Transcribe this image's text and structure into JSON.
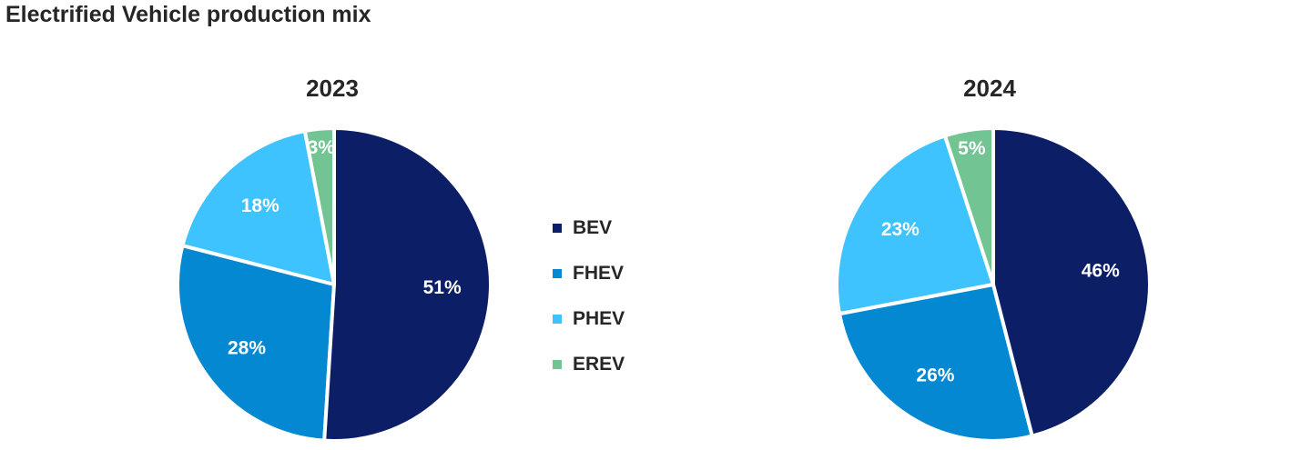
{
  "page": {
    "title": "Electrified Vehicle production mix"
  },
  "colors": {
    "BEV": "#0c1f66",
    "FHEV": "#0388d1",
    "PHEV": "#3ec3ff",
    "EREV": "#72c492"
  },
  "chart_data": [
    {
      "type": "pie",
      "title": "2023",
      "categories": [
        "BEV",
        "FHEV",
        "PHEV",
        "EREV"
      ],
      "values": [
        51,
        28,
        18,
        3
      ],
      "labels": [
        "51%",
        "28%",
        "18%",
        "3%"
      ]
    },
    {
      "type": "pie",
      "title": "2024",
      "categories": [
        "BEV",
        "FHEV",
        "PHEV",
        "EREV"
      ],
      "values": [
        46,
        26,
        23,
        5
      ],
      "labels": [
        "46%",
        "26%",
        "23%",
        "5%"
      ]
    }
  ],
  "legend": {
    "items": [
      {
        "label": "BEV",
        "color": "#0c1f66"
      },
      {
        "label": "FHEV",
        "color": "#0388d1"
      },
      {
        "label": "PHEV",
        "color": "#3ec3ff"
      },
      {
        "label": "EREV",
        "color": "#72c492"
      }
    ]
  }
}
